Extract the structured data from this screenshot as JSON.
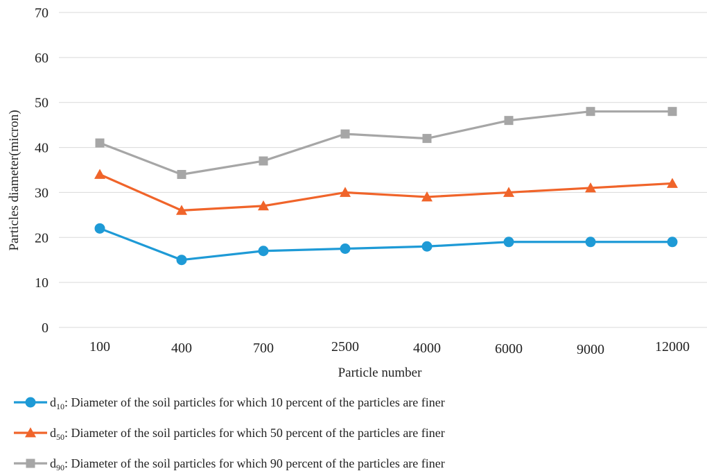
{
  "chart_data": {
    "type": "line",
    "title": "",
    "xlabel": "Particle number",
    "ylabel": "Particles diameter(micron)",
    "categories": [
      "100",
      "400",
      "700",
      "2500",
      "4000",
      "6000",
      "9000",
      "12000"
    ],
    "ylim": [
      0,
      70
    ],
    "yticks": [
      0,
      10,
      20,
      30,
      40,
      50,
      60,
      70
    ],
    "grid": "horizontal",
    "legend_position": "bottom",
    "series": [
      {
        "name": "d10: Diameter of the soil particles for which 10 percent of the particles are finer",
        "legend_prefix": "d",
        "legend_sub": "10",
        "legend_text": ": Diameter of the soil particles for which 10 percent of the particles are finer",
        "marker": "circle",
        "color": "#1e9ad6",
        "values": [
          22,
          15,
          17,
          17.5,
          18,
          19,
          19,
          19
        ]
      },
      {
        "name": "d50: Diameter of the soil particles for which 50 percent of the particles are finer",
        "legend_prefix": "d",
        "legend_sub": "50",
        "legend_text": ": Diameter of the soil particles for which 50 percent of the particles are finer",
        "marker": "triangle",
        "color": "#f0642a",
        "values": [
          34,
          26,
          27,
          30,
          29,
          30,
          31,
          32
        ]
      },
      {
        "name": "d90: Diameter of the soil particles for which 90 percent of the particles are finer",
        "legend_prefix": "d",
        "legend_sub": "90",
        "legend_text": ": Diameter of the soil particles for which 90 percent of the particles are finer",
        "marker": "square",
        "color": "#a6a6a6",
        "values": [
          41,
          34,
          37,
          43,
          42,
          46,
          48,
          48
        ]
      }
    ]
  }
}
